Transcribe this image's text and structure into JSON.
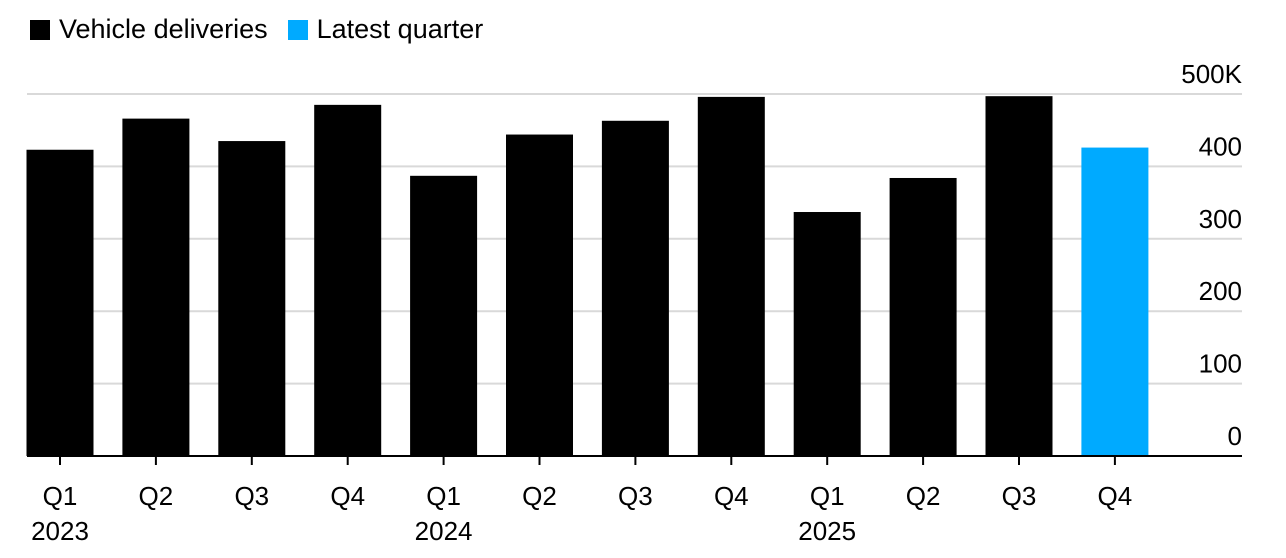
{
  "chart_data": {
    "type": "bar",
    "legend": [
      {
        "label": "Vehicle deliveries",
        "color": "#000000"
      },
      {
        "label": "Latest quarter",
        "color": "#00aaff"
      }
    ],
    "categories": [
      "Q1",
      "Q2",
      "Q3",
      "Q4",
      "Q1",
      "Q2",
      "Q3",
      "Q4",
      "Q1",
      "Q2",
      "Q3",
      "Q4"
    ],
    "years": [
      {
        "label": "2023",
        "index": 0
      },
      {
        "label": "2024",
        "index": 4
      },
      {
        "label": "2025",
        "index": 8
      }
    ],
    "values": [
      423,
      466,
      435,
      485,
      387,
      444,
      463,
      496,
      337,
      384,
      497,
      426
    ],
    "highlight_index": 11,
    "bar_color": "#000000",
    "highlight_color": "#00aaff",
    "yticks": [
      {
        "value": 0,
        "label": "0"
      },
      {
        "value": 100,
        "label": "100"
      },
      {
        "value": 200,
        "label": "200"
      },
      {
        "value": 300,
        "label": "300"
      },
      {
        "value": 400,
        "label": "400"
      },
      {
        "value": 500,
        "label": "500K"
      }
    ],
    "ylim": [
      0,
      500
    ],
    "grid": true
  }
}
